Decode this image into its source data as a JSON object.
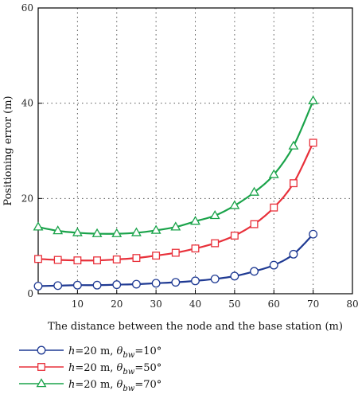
{
  "chart_data": {
    "type": "line",
    "title": "",
    "xlabel": "The distance between the node and the base station (m)",
    "ylabel": "Positioning error (m)",
    "xlim": [
      0,
      80
    ],
    "ylim": [
      0,
      60
    ],
    "x_ticks": [
      10,
      20,
      30,
      40,
      50,
      60,
      70,
      80
    ],
    "y_ticks": [
      0,
      20,
      40,
      60
    ],
    "grid": true,
    "legend_position": "bottom-left",
    "x": [
      0,
      5,
      10,
      15,
      20,
      25,
      30,
      35,
      40,
      45,
      50,
      55,
      60,
      65,
      70
    ],
    "series": [
      {
        "legend": {
          "prefix": "h",
          "mid": "=20 m, ",
          "theta": "θ",
          "sub": "bw",
          "suffix": "=10°"
        },
        "color": "#1f3a93",
        "marker": "circle",
        "values": [
          1.6,
          1.7,
          1.8,
          1.8,
          1.9,
          2.0,
          2.2,
          2.4,
          2.7,
          3.1,
          3.7,
          4.7,
          6.0,
          8.3,
          12.5
        ]
      },
      {
        "legend": {
          "prefix": "h",
          "mid": "=20 m, ",
          "theta": "θ",
          "sub": "bw",
          "suffix": "=50°"
        },
        "color": "#e8303a",
        "marker": "square",
        "values": [
          7.3,
          7.1,
          7.0,
          7.0,
          7.2,
          7.5,
          8.0,
          8.6,
          9.5,
          10.6,
          12.2,
          14.6,
          18.1,
          23.2,
          31.7
        ]
      },
      {
        "legend": {
          "prefix": "h",
          "mid": "=20 m, ",
          "theta": "θ",
          "sub": "bw",
          "suffix": "=70°"
        },
        "color": "#1aa34a",
        "marker": "triangle",
        "values": [
          14.0,
          13.2,
          12.8,
          12.6,
          12.6,
          12.8,
          13.3,
          14.0,
          15.2,
          16.4,
          18.5,
          21.3,
          25.0,
          31.0,
          40.5
        ]
      }
    ]
  }
}
